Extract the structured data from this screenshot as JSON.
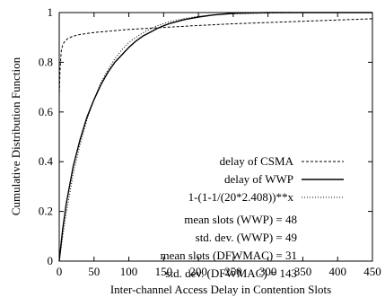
{
  "chart_data": {
    "type": "line",
    "title": "",
    "xlabel": "Inter-channel Access Delay in Contention Slots",
    "ylabel": "Cumulative Distribution Function",
    "xlim": [
      0,
      450
    ],
    "ylim": [
      0,
      1
    ],
    "xticks": [
      "0",
      "50",
      "100",
      "150",
      "200",
      "250",
      "300",
      "350",
      "400",
      "450"
    ],
    "yticks": [
      "0",
      "0.2",
      "0.4",
      "0.6",
      "0.8",
      "1"
    ],
    "grid": false,
    "legend_placement": "right",
    "series": [
      {
        "name": "delay of CSMA",
        "style": "dashed",
        "x": [
          0,
          1,
          2,
          3,
          5,
          8,
          12,
          20,
          30,
          50,
          100,
          150,
          200,
          250,
          300,
          350,
          400,
          450
        ],
        "y": [
          0.66,
          0.76,
          0.81,
          0.845,
          0.87,
          0.885,
          0.895,
          0.905,
          0.912,
          0.92,
          0.932,
          0.94,
          0.948,
          0.955,
          0.96,
          0.965,
          0.97,
          0.975
        ]
      },
      {
        "name": "delay of WWP",
        "style": "solid",
        "x": [
          0,
          5,
          10,
          20,
          30,
          40,
          50,
          60,
          70,
          80,
          90,
          100,
          110,
          120,
          130,
          140,
          150,
          160,
          180,
          200,
          220,
          250,
          300,
          350,
          400,
          450
        ],
        "y": [
          0,
          0.13,
          0.23,
          0.38,
          0.49,
          0.58,
          0.65,
          0.71,
          0.76,
          0.8,
          0.83,
          0.86,
          0.885,
          0.905,
          0.92,
          0.935,
          0.947,
          0.957,
          0.972,
          0.982,
          0.99,
          0.997,
          1.0,
          1.0,
          1.0,
          1.0
        ]
      },
      {
        "name": "1-(1-1/(20*2.408))**x",
        "style": "dotted",
        "x": [
          0,
          5,
          10,
          20,
          30,
          40,
          50,
          60,
          70,
          80,
          90,
          100,
          110,
          120,
          130,
          140,
          150,
          160,
          180,
          200,
          220,
          250,
          300,
          350,
          400,
          450
        ],
        "y": [
          0,
          0.1,
          0.19,
          0.35,
          0.47,
          0.57,
          0.65,
          0.72,
          0.77,
          0.815,
          0.85,
          0.88,
          0.9,
          0.918,
          0.933,
          0.946,
          0.956,
          0.964,
          0.976,
          0.985,
          0.99,
          0.995,
          0.998,
          1.0,
          1.0,
          1.0
        ]
      }
    ],
    "annotations": [
      "mean slots (WWP) = 48",
      "std. dev. (WWP) = 49",
      "mean slots (DFWMAC) = 31",
      "std. dev. (DFWMAC) = 143"
    ]
  }
}
